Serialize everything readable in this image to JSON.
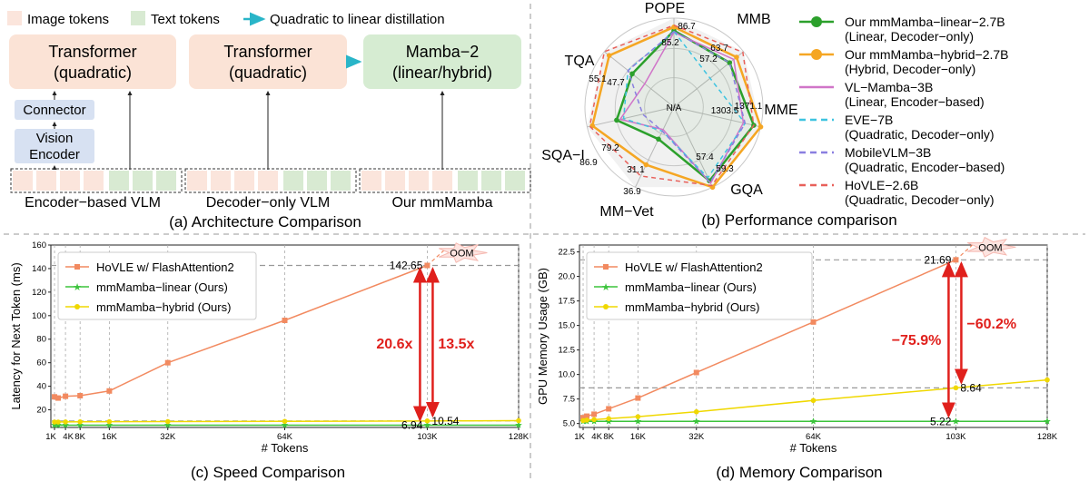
{
  "panel_a": {
    "legend": {
      "image_tokens": "Image tokens",
      "text_tokens": "Text tokens",
      "distillation": "Quadratic to linear distillation"
    },
    "box1": {
      "line1": "Transformer",
      "line2": "(quadratic)"
    },
    "box2": {
      "line1": "Transformer",
      "line2": "(quadratic)"
    },
    "box3": {
      "line1": "Mamba−2",
      "line2": "(linear/hybrid)"
    },
    "connector": "Connector",
    "vision_encoder": {
      "line1": "Vision",
      "line2": "Encoder"
    },
    "label1": "Encoder−based VLM",
    "label2": "Decoder−only VLM",
    "label3": "Our mmMamba",
    "caption": "(a) Architecture Comparison",
    "colors": {
      "image_token": "#fbe5dc",
      "text_token": "#d8ead2",
      "transformer_box": "#fbe3d6",
      "mamba_box": "#d6ecd2",
      "encoder_box": "#d7e1f2",
      "arrow": "#29b5c8"
    }
  },
  "panel_b": {
    "caption": "(b) Performance comparison",
    "center_label": "N/A",
    "legend": [
      {
        "name": "Our mmMamba−linear−2.7B",
        "sub": "(Linear, Decoder−only)",
        "color": "#2ca02c",
        "style": "solid-marker"
      },
      {
        "name": "Our mmMamba−hybrid−2.7B",
        "sub": "(Hybrid, Decoder−only)",
        "color": "#f5a623",
        "style": "solid-marker"
      },
      {
        "name": "VL−Mamba−3B",
        "sub": "(Linear, Encoder−based)",
        "color": "#d075c8",
        "style": "solid"
      },
      {
        "name": "EVE−7B",
        "sub": "(Quadratic, Decoder−only)",
        "color": "#3ec3e0",
        "style": "dashed"
      },
      {
        "name": "MobileVLM−3B",
        "sub": "(Quadratic, Encoder−based)",
        "color": "#8a7fe0",
        "style": "dashed"
      },
      {
        "name": "HoVLE−2.6B",
        "sub": "(Quadratic, Decoder−only)",
        "color": "#e8605a",
        "style": "dashed"
      }
    ],
    "chart_data": {
      "type": "radar",
      "axes": [
        "POPE",
        "MMB",
        "MME",
        "GQA",
        "MM−Vet",
        "SQA−I",
        "TQA"
      ],
      "value_labels": {
        "POPE": [
          "86.7",
          "85.2"
        ],
        "MMB": [
          "63.7",
          "57.2"
        ],
        "MME": [
          "1371.1",
          "1303.5"
        ],
        "GQA": [
          "59.3",
          "57.4"
        ],
        "MM−Vet": [
          "36.9",
          "31.1"
        ],
        "SQA−I": [
          "86.9",
          "79.2"
        ],
        "TQA": [
          "55.1",
          "47.7"
        ]
      },
      "series": [
        {
          "name": "Our mmMamba−linear−2.7B",
          "color": "#2ca02c",
          "values": [
            0.86,
            0.8,
            0.92,
            0.92,
            0.4,
            0.66,
            0.6
          ]
        },
        {
          "name": "Our mmMamba−hybrid−2.7B",
          "color": "#f5a623",
          "values": [
            0.9,
            0.9,
            1.0,
            1.0,
            0.72,
            0.94,
            0.93
          ]
        },
        {
          "name": "VL−Mamba−3B",
          "color": "#d075c8",
          "values": [
            0.84,
            0.86,
            0.8,
            0.95,
            0.28,
            0.62,
            0.42
          ]
        },
        {
          "name": "EVE−7B",
          "color": "#3ec3e0",
          "values": [
            0.85,
            0.52,
            0.82,
            0.88,
            0.3,
            0.58,
            0.66
          ]
        },
        {
          "name": "MobileVLM−3B",
          "color": "#8a7fe0",
          "values": [
            0.85,
            0.8,
            0.82,
            0.94,
            0.3,
            0.36,
            0.66
          ]
        },
        {
          "name": "HoVLE−2.6B",
          "color": "#e8605a",
          "values": [
            0.92,
            0.99,
            0.92,
            0.98,
            0.86,
            0.97,
            1.0
          ]
        }
      ]
    }
  },
  "panel_c": {
    "caption": "(c) Speed Comparison",
    "ylabel": "Latency for Next Token (ms)",
    "xlabel": "# Tokens",
    "oom": "OOM",
    "annotations": {
      "hovle_end": "142.65",
      "linear_end": "6.94",
      "hybrid_end": "10.54",
      "speedup_linear": "20.6x",
      "speedup_hybrid": "13.5x"
    },
    "chart_data": {
      "type": "line",
      "x_ticks": [
        1,
        4,
        8,
        16,
        32,
        64,
        103,
        128
      ],
      "x_tick_labels": [
        "1K",
        "4K",
        "8K",
        "16K",
        "32K",
        "64K",
        "103K",
        "128K"
      ],
      "ylim": [
        5,
        160
      ],
      "y_ticks": [
        20,
        40,
        60,
        80,
        100,
        120,
        140,
        160
      ],
      "series": [
        {
          "name": "HoVLE w/ FlashAttention2",
          "color": "#f28a60",
          "marker": "square",
          "x": [
            1,
            2,
            4,
            8,
            16,
            32,
            64,
            103
          ],
          "y": [
            31,
            30,
            31.5,
            32,
            36,
            60,
            96,
            142.65
          ]
        },
        {
          "name": "mmMamba−linear (Ours)",
          "color": "#3cc43c",
          "marker": "star",
          "x": [
            1,
            2,
            4,
            8,
            16,
            32,
            64,
            103,
            128
          ],
          "y": [
            6.94,
            6.94,
            6.94,
            6.94,
            6.94,
            6.94,
            6.94,
            6.94,
            6.94
          ]
        },
        {
          "name": "mmMamba−hybrid (Ours)",
          "color": "#f0d800",
          "marker": "circle",
          "x": [
            1,
            2,
            4,
            8,
            16,
            32,
            64,
            103,
            128
          ],
          "y": [
            9.6,
            9.6,
            9.7,
            9.8,
            9.9,
            10.0,
            10.2,
            10.54,
            10.8
          ]
        }
      ]
    }
  },
  "panel_d": {
    "caption": "(d) Memory Comparison",
    "ylabel": "GPU Memory Usage (GB)",
    "xlabel": "# Tokens",
    "oom": "OOM",
    "annotations": {
      "hovle_end": "21.69",
      "linear_end": "5.22",
      "hybrid_end": "8.64",
      "reduction_linear": "−75.9%",
      "reduction_hybrid": "−60.2%"
    },
    "chart_data": {
      "type": "line",
      "x_ticks": [
        1,
        4,
        8,
        16,
        32,
        64,
        103,
        128
      ],
      "x_tick_labels": [
        "1K",
        "4K",
        "8K",
        "16K",
        "32K",
        "64K",
        "103K",
        "128K"
      ],
      "ylim": [
        4.6,
        23.2
      ],
      "y_ticks": [
        5.0,
        7.5,
        10.0,
        12.5,
        15.0,
        17.5,
        20.0,
        22.5
      ],
      "y_tick_labels": [
        "5.0",
        "7.5",
        "10.0",
        "12.5",
        "15.0",
        "17.5",
        "20.0",
        "22.5"
      ],
      "series": [
        {
          "name": "HoVLE w/ FlashAttention2",
          "color": "#f28a60",
          "marker": "square",
          "x": [
            1,
            2,
            4,
            8,
            16,
            32,
            64,
            103
          ],
          "y": [
            5.6,
            5.75,
            5.95,
            6.5,
            7.6,
            10.2,
            15.35,
            21.69
          ]
        },
        {
          "name": "mmMamba−linear (Ours)",
          "color": "#3cc43c",
          "marker": "star",
          "x": [
            1,
            2,
            4,
            8,
            16,
            32,
            64,
            103,
            128
          ],
          "y": [
            5.22,
            5.22,
            5.22,
            5.22,
            5.22,
            5.22,
            5.22,
            5.22,
            5.22
          ]
        },
        {
          "name": "mmMamba−hybrid (Ours)",
          "color": "#f0d800",
          "marker": "circle",
          "x": [
            1,
            2,
            4,
            8,
            16,
            32,
            64,
            103,
            128
          ],
          "y": [
            5.3,
            5.35,
            5.4,
            5.5,
            5.7,
            6.2,
            7.35,
            8.64,
            9.45
          ]
        }
      ]
    }
  }
}
